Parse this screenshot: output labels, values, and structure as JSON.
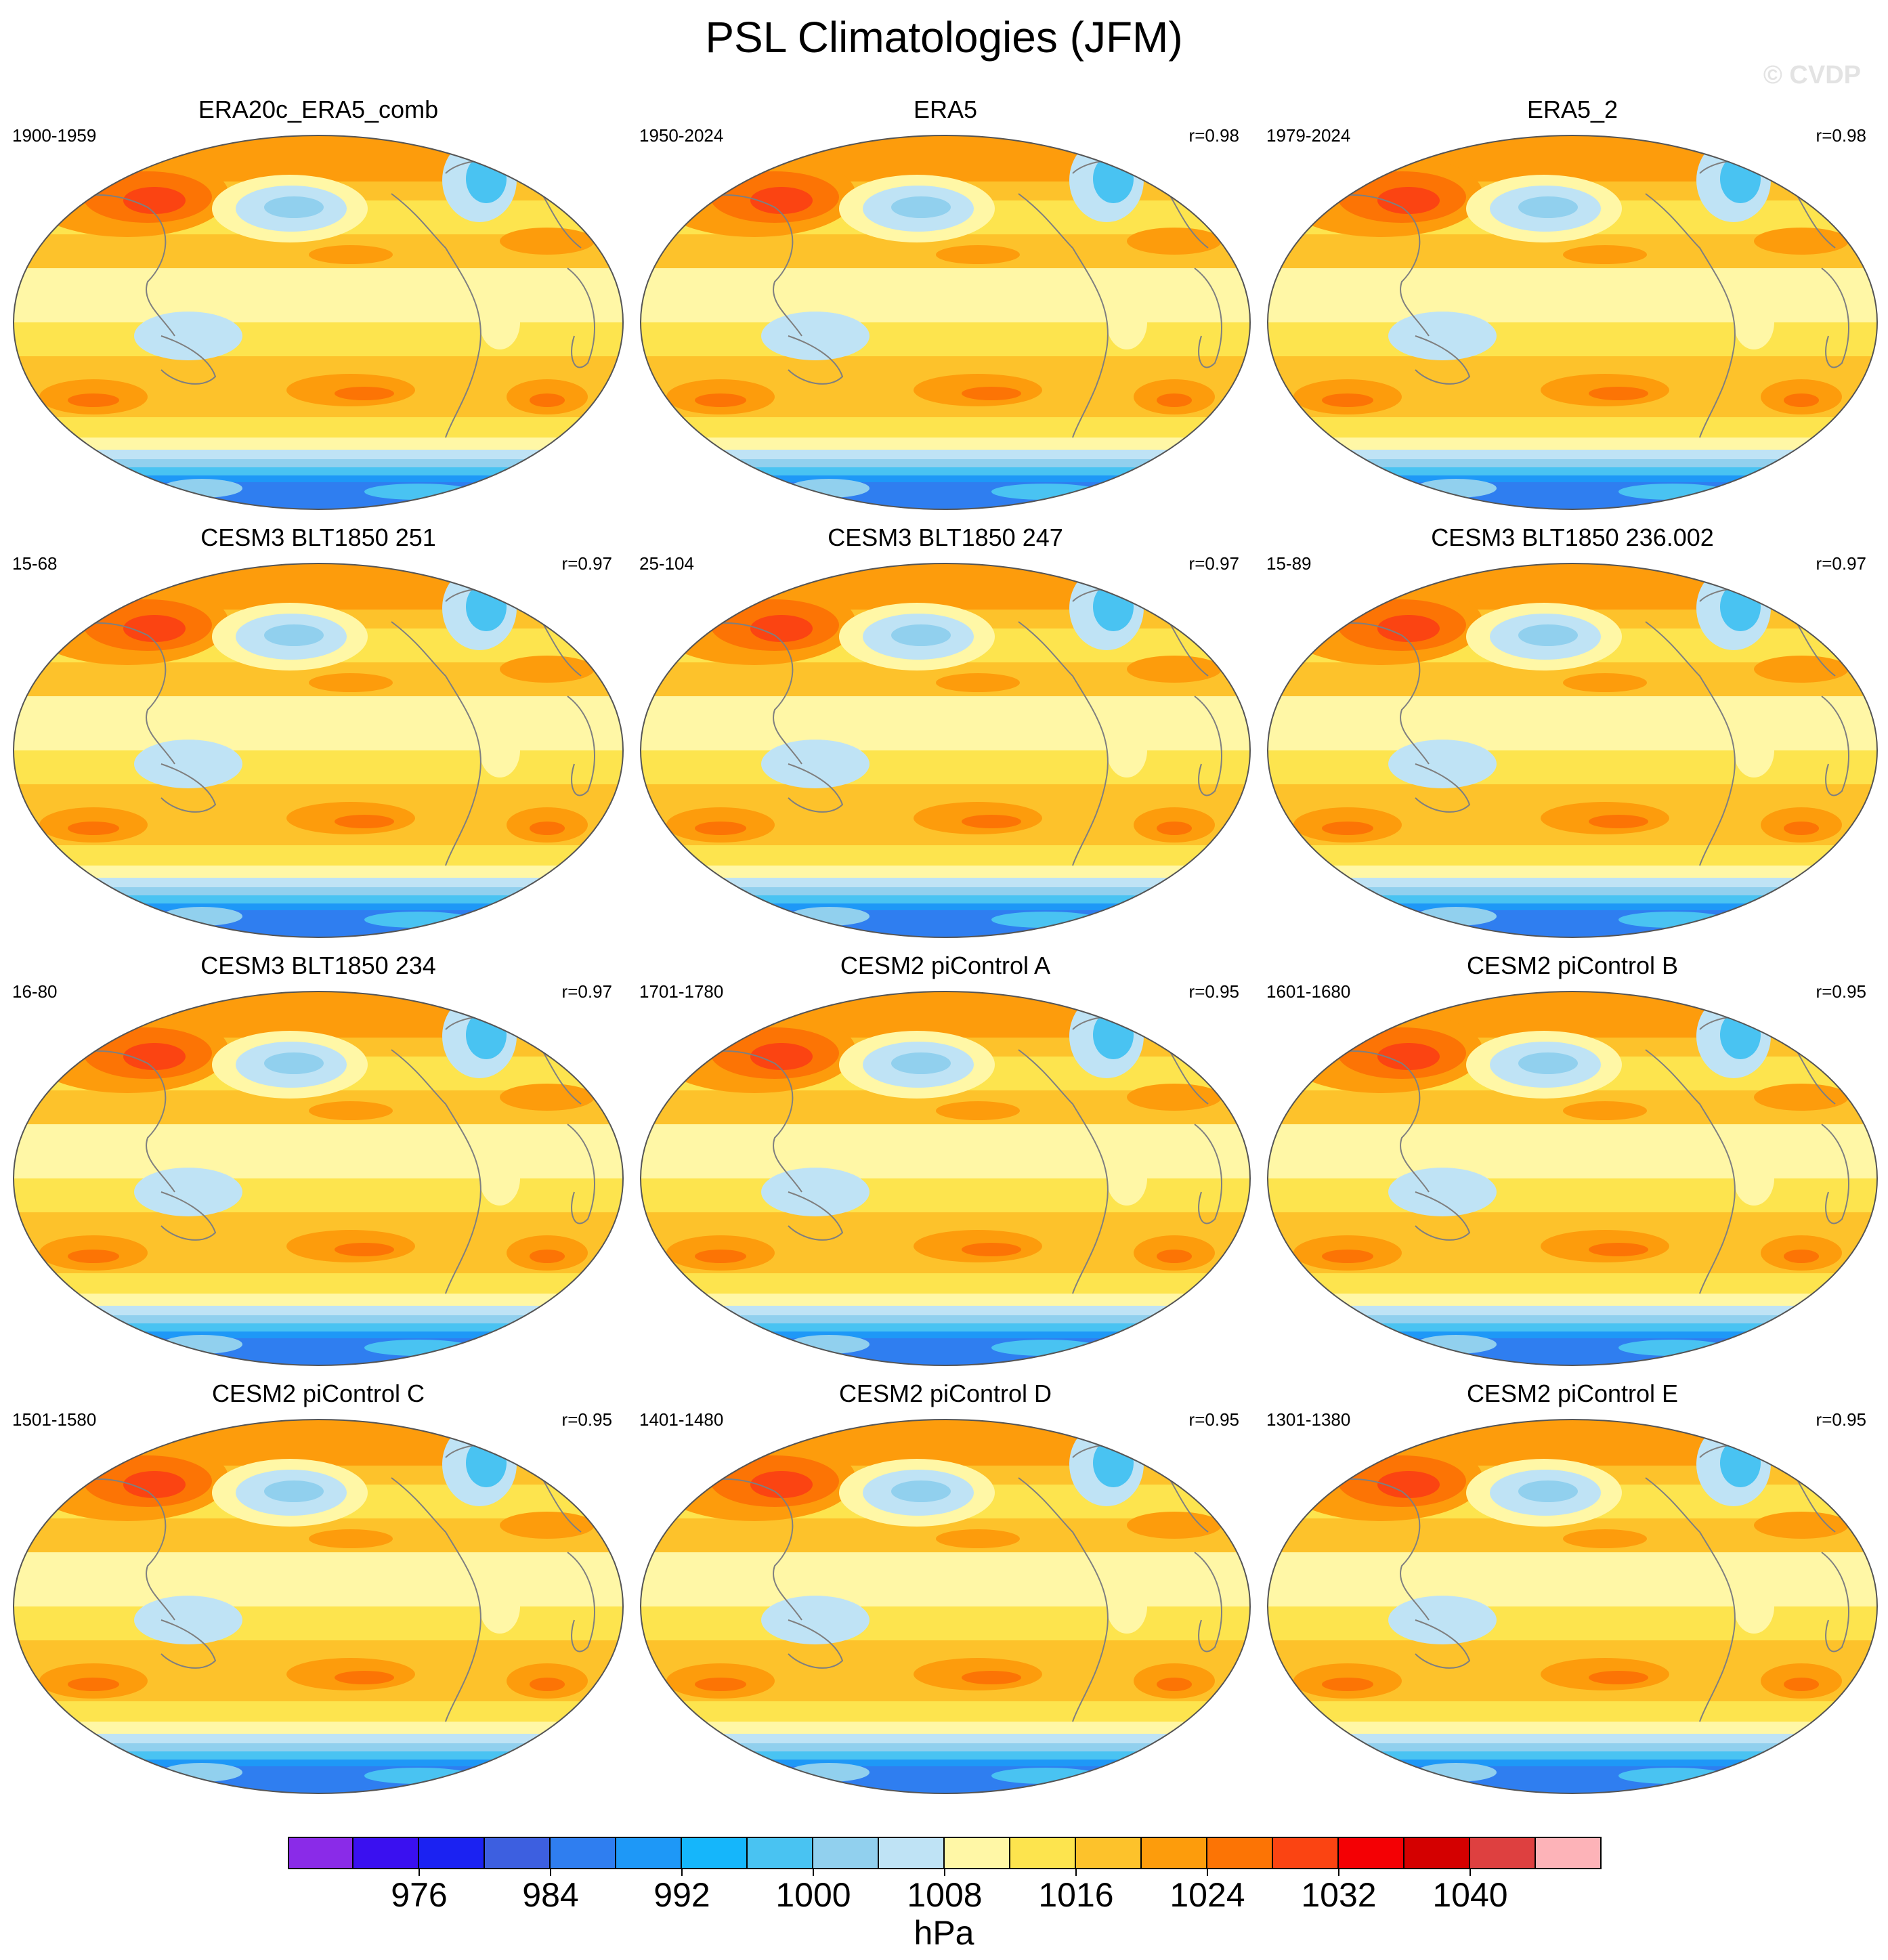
{
  "title": "PSL Climatologies (JFM)",
  "watermark": "© CVDP",
  "panels": [
    {
      "title": "ERA20c_ERA5_comb",
      "years": "1900-1959",
      "r": ""
    },
    {
      "title": "ERA5",
      "years": "1950-2024",
      "r": "r=0.98"
    },
    {
      "title": "ERA5_2",
      "years": "1979-2024",
      "r": "r=0.98"
    },
    {
      "title": "CESM3 BLT1850 251",
      "years": "15-68",
      "r": "r=0.97"
    },
    {
      "title": "CESM3 BLT1850 247",
      "years": "25-104",
      "r": "r=0.97"
    },
    {
      "title": "CESM3 BLT1850 236.002",
      "years": "15-89",
      "r": "r=0.97"
    },
    {
      "title": "CESM3 BLT1850 234",
      "years": "16-80",
      "r": "r=0.97"
    },
    {
      "title": "CESM2 piControl A",
      "years": "1701-1780",
      "r": "r=0.95"
    },
    {
      "title": "CESM2 piControl B",
      "years": "1601-1680",
      "r": "r=0.95"
    },
    {
      "title": "CESM2 piControl C",
      "years": "1501-1580",
      "r": "r=0.95"
    },
    {
      "title": "CESM2 piControl D",
      "years": "1401-1480",
      "r": "r=0.95"
    },
    {
      "title": "CESM2 piControl E",
      "years": "1301-1380",
      "r": "r=0.95"
    }
  ],
  "colorbar": {
    "unit": "hPa",
    "colors": [
      "#8a2be8",
      "#3a10f0",
      "#1b22f2",
      "#3d5fe0",
      "#2f7ef0",
      "#1e98f7",
      "#15b6fb",
      "#49c3f2",
      "#91d0ee",
      "#bfe3f5",
      "#fff7a6",
      "#fde44e",
      "#fdc22b",
      "#fd9c0c",
      "#fc7405",
      "#fb4412",
      "#f40004",
      "#d40000",
      "#de4040",
      "#fdb3b8"
    ],
    "labels": [
      "976",
      "984",
      "992",
      "1000",
      "1008",
      "1016",
      "1024",
      "1032",
      "1040"
    ]
  },
  "legend_values": {
    "contour_levels_hPa": [
      968,
      972,
      976,
      980,
      984,
      988,
      992,
      996,
      1000,
      1004,
      1008,
      1012,
      1016,
      1020,
      1024,
      1028,
      1032,
      1036,
      1040,
      1044
    ]
  }
}
